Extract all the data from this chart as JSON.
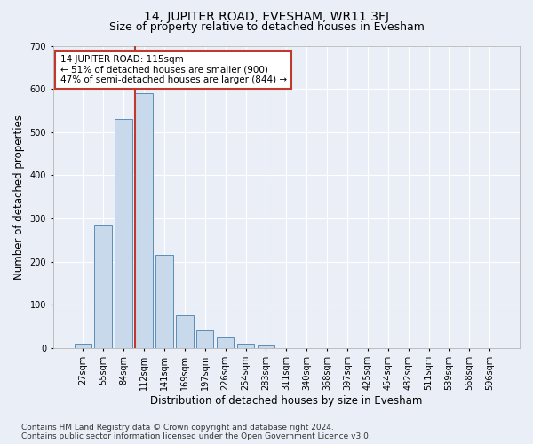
{
  "title": "14, JUPITER ROAD, EVESHAM, WR11 3FJ",
  "subtitle": "Size of property relative to detached houses in Evesham",
  "xlabel": "Distribution of detached houses by size in Evesham",
  "ylabel": "Number of detached properties",
  "footnote": "Contains HM Land Registry data © Crown copyright and database right 2024.\nContains public sector information licensed under the Open Government Licence v3.0.",
  "categories": [
    "27sqm",
    "55sqm",
    "84sqm",
    "112sqm",
    "141sqm",
    "169sqm",
    "197sqm",
    "226sqm",
    "254sqm",
    "283sqm",
    "311sqm",
    "340sqm",
    "368sqm",
    "397sqm",
    "425sqm",
    "454sqm",
    "482sqm",
    "511sqm",
    "539sqm",
    "568sqm",
    "596sqm"
  ],
  "values": [
    10,
    285,
    530,
    590,
    215,
    75,
    40,
    25,
    10,
    5,
    0,
    0,
    0,
    0,
    0,
    0,
    0,
    0,
    0,
    0,
    0
  ],
  "bar_color": "#c9d9ec",
  "bar_edge_color": "#5b8db8",
  "highlight_edge_color": "#c0392b",
  "property_line_index": 3,
  "annotation_text": "14 JUPITER ROAD: 115sqm\n← 51% of detached houses are smaller (900)\n47% of semi-detached houses are larger (844) →",
  "annotation_box_color": "white",
  "annotation_box_edge": "#c0392b",
  "ylim": [
    0,
    700
  ],
  "yticks": [
    0,
    100,
    200,
    300,
    400,
    500,
    600,
    700
  ],
  "bg_color": "#eaeff7",
  "plot_bg_color": "#eaeff7",
  "grid_color": "white",
  "title_fontsize": 10,
  "subtitle_fontsize": 9,
  "axis_label_fontsize": 8.5,
  "tick_fontsize": 7,
  "footnote_fontsize": 6.5
}
